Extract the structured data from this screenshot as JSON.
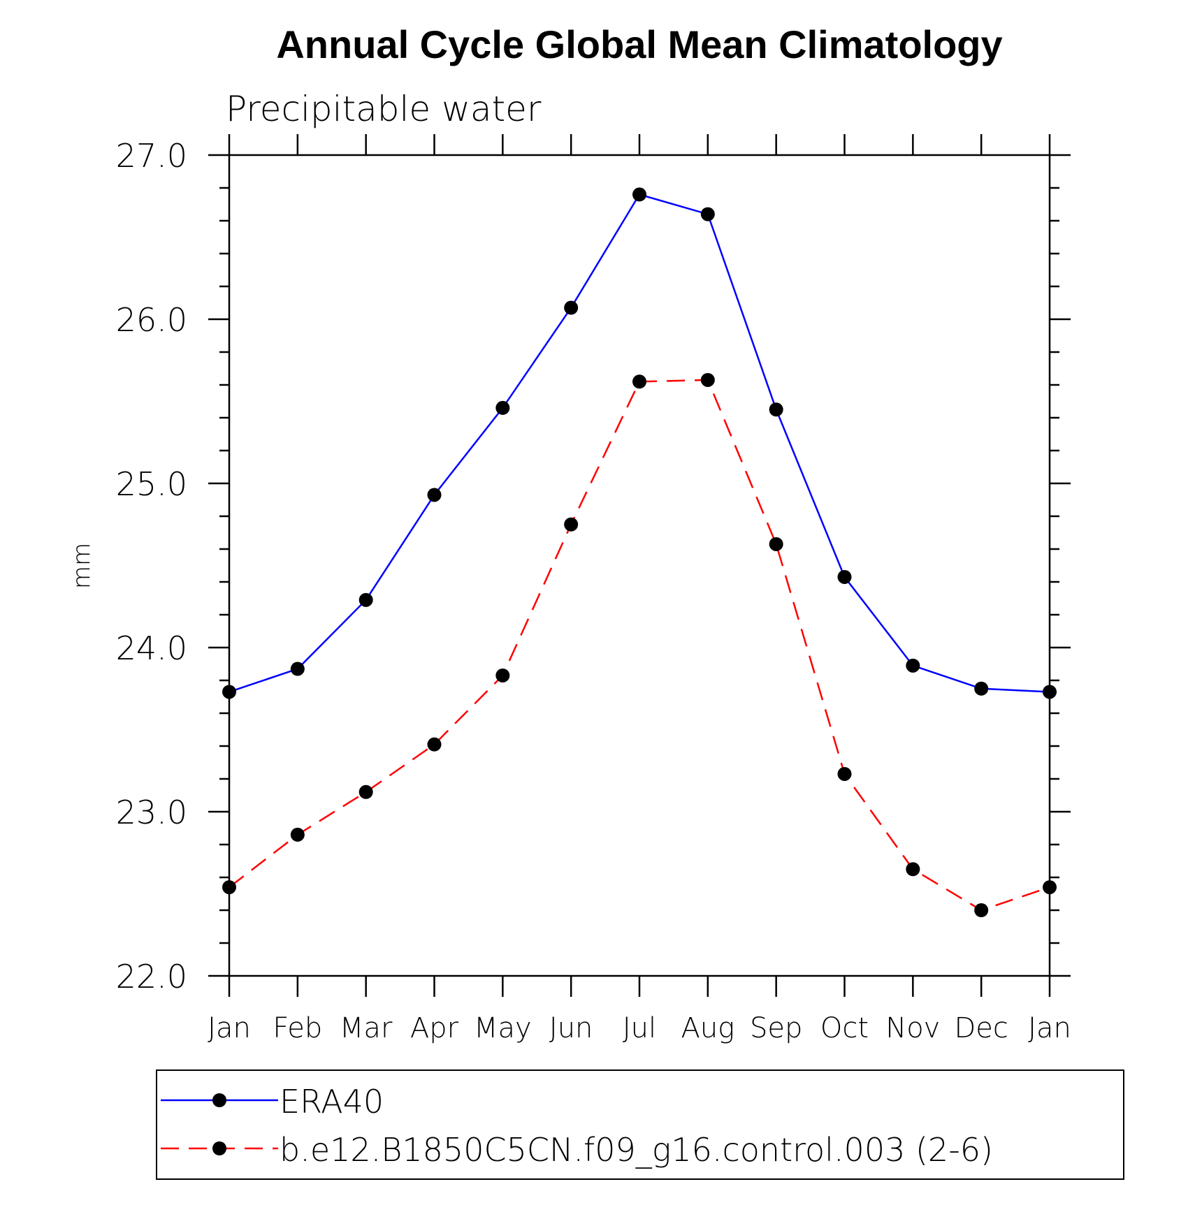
{
  "chart_data": {
    "type": "line",
    "title": "Annual Cycle Global Mean Climatology",
    "subtitle": "Precipitable water",
    "xlabel": "",
    "ylabel": "mm",
    "ylim": [
      22.0,
      27.0
    ],
    "yticks": [
      "22.0",
      "23.0",
      "24.0",
      "25.0",
      "26.0",
      "27.0"
    ],
    "categories": [
      "Jan",
      "Feb",
      "Mar",
      "Apr",
      "May",
      "Jun",
      "Jul",
      "Aug",
      "Sep",
      "Oct",
      "Nov",
      "Dec",
      "Jan"
    ],
    "grid": false,
    "legend_position": "bottom",
    "series": [
      {
        "name": "ERA40",
        "color": "#0000ff",
        "dash": "solid",
        "marker": "filled-circle",
        "values": [
          23.73,
          23.87,
          24.29,
          24.93,
          25.46,
          26.07,
          26.76,
          26.64,
          25.45,
          24.43,
          23.89,
          23.75,
          23.73
        ]
      },
      {
        "name": "b.e12.B1850C5CN.f09_g16.control.003 (2-6)",
        "color": "#ff0000",
        "dash": "dashed",
        "marker": "filled-circle",
        "values": [
          22.54,
          22.86,
          23.12,
          23.41,
          23.83,
          24.75,
          25.62,
          25.63,
          24.63,
          23.23,
          22.65,
          22.4,
          22.54
        ]
      }
    ]
  }
}
